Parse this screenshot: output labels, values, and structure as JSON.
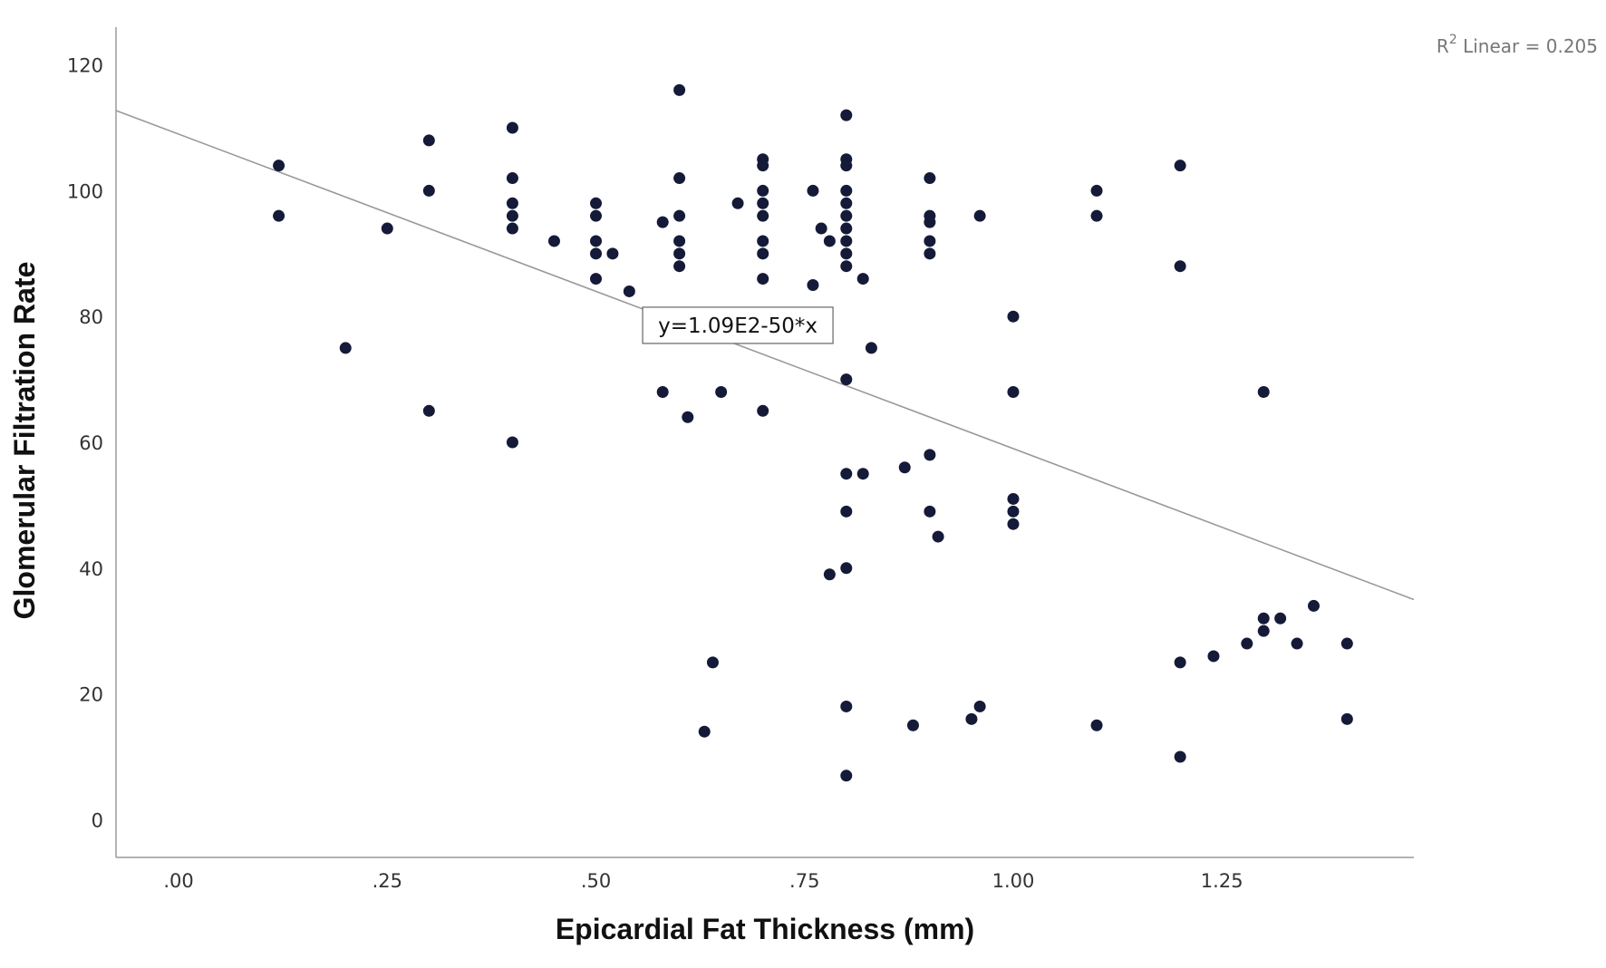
{
  "chart_data": {
    "type": "scatter",
    "xlabel": "Epicardial Fat Thickness (mm)",
    "ylabel": "Glomerular Filtration Rate",
    "xlim": [
      -0.075,
      1.48
    ],
    "ylim": [
      -6,
      126
    ],
    "x_ticks": [
      {
        "value": 0.0,
        "label": ".00"
      },
      {
        "value": 0.25,
        "label": ".25"
      },
      {
        "value": 0.5,
        "label": ".50"
      },
      {
        "value": 0.75,
        "label": ".75"
      },
      {
        "value": 1.0,
        "label": "1.00"
      },
      {
        "value": 1.25,
        "label": "1.25"
      }
    ],
    "y_ticks": [
      {
        "value": 0,
        "label": "0"
      },
      {
        "value": 20,
        "label": "20"
      },
      {
        "value": 40,
        "label": "40"
      },
      {
        "value": 60,
        "label": "60"
      },
      {
        "value": 80,
        "label": "80"
      },
      {
        "value": 100,
        "label": "100"
      },
      {
        "value": 120,
        "label": "120"
      }
    ],
    "grid": false,
    "fit_line": {
      "intercept": 109,
      "slope": -50,
      "x_range": [
        -0.075,
        1.48
      ]
    },
    "equation_label": "y=1.09E2-50*x",
    "r2_label": {
      "prefix": "R",
      "superscript": "2",
      "text": " Linear = 0.205"
    },
    "colors": {
      "points": "#141a38",
      "fit_line": "#999999",
      "axis": "#9a9a9a"
    },
    "points": [
      [
        0.12,
        104
      ],
      [
        0.12,
        96
      ],
      [
        0.2,
        75
      ],
      [
        0.25,
        94
      ],
      [
        0.3,
        108
      ],
      [
        0.3,
        100
      ],
      [
        0.3,
        65
      ],
      [
        0.4,
        110
      ],
      [
        0.4,
        102
      ],
      [
        0.4,
        98
      ],
      [
        0.4,
        96
      ],
      [
        0.4,
        94
      ],
      [
        0.4,
        60
      ],
      [
        0.45,
        92
      ],
      [
        0.5,
        98
      ],
      [
        0.5,
        96
      ],
      [
        0.5,
        92
      ],
      [
        0.5,
        90
      ],
      [
        0.5,
        86
      ],
      [
        0.52,
        90
      ],
      [
        0.54,
        84
      ],
      [
        0.58,
        95
      ],
      [
        0.58,
        68
      ],
      [
        0.6,
        116
      ],
      [
        0.6,
        102
      ],
      [
        0.6,
        96
      ],
      [
        0.6,
        92
      ],
      [
        0.6,
        90
      ],
      [
        0.6,
        88
      ],
      [
        0.61,
        64
      ],
      [
        0.63,
        14
      ],
      [
        0.64,
        25
      ],
      [
        0.65,
        68
      ],
      [
        0.67,
        98
      ],
      [
        0.7,
        105
      ],
      [
        0.7,
        104
      ],
      [
        0.7,
        100
      ],
      [
        0.7,
        98
      ],
      [
        0.7,
        96
      ],
      [
        0.7,
        92
      ],
      [
        0.7,
        90
      ],
      [
        0.7,
        86
      ],
      [
        0.7,
        65
      ],
      [
        0.76,
        100
      ],
      [
        0.76,
        85
      ],
      [
        0.77,
        94
      ],
      [
        0.78,
        92
      ],
      [
        0.78,
        39
      ],
      [
        0.8,
        112
      ],
      [
        0.8,
        105
      ],
      [
        0.8,
        104
      ],
      [
        0.8,
        100
      ],
      [
        0.8,
        98
      ],
      [
        0.8,
        96
      ],
      [
        0.8,
        94
      ],
      [
        0.8,
        92
      ],
      [
        0.8,
        90
      ],
      [
        0.8,
        88
      ],
      [
        0.8,
        70
      ],
      [
        0.8,
        55
      ],
      [
        0.8,
        49
      ],
      [
        0.8,
        40
      ],
      [
        0.8,
        18
      ],
      [
        0.8,
        7
      ],
      [
        0.82,
        86
      ],
      [
        0.82,
        55
      ],
      [
        0.83,
        75
      ],
      [
        0.87,
        56
      ],
      [
        0.88,
        15
      ],
      [
        0.9,
        102
      ],
      [
        0.9,
        96
      ],
      [
        0.9,
        95
      ],
      [
        0.9,
        92
      ],
      [
        0.9,
        90
      ],
      [
        0.9,
        58
      ],
      [
        0.9,
        49
      ],
      [
        0.91,
        45
      ],
      [
        0.95,
        16
      ],
      [
        0.96,
        96
      ],
      [
        0.96,
        18
      ],
      [
        1.0,
        80
      ],
      [
        1.0,
        68
      ],
      [
        1.0,
        51
      ],
      [
        1.0,
        49
      ],
      [
        1.0,
        47
      ],
      [
        1.1,
        100
      ],
      [
        1.1,
        96
      ],
      [
        1.1,
        15
      ],
      [
        1.2,
        104
      ],
      [
        1.2,
        88
      ],
      [
        1.2,
        25
      ],
      [
        1.2,
        10
      ],
      [
        1.24,
        26
      ],
      [
        1.28,
        28
      ],
      [
        1.3,
        68
      ],
      [
        1.3,
        32
      ],
      [
        1.3,
        30
      ],
      [
        1.32,
        32
      ],
      [
        1.34,
        28
      ],
      [
        1.36,
        34
      ],
      [
        1.4,
        28
      ],
      [
        1.4,
        16
      ]
    ]
  }
}
